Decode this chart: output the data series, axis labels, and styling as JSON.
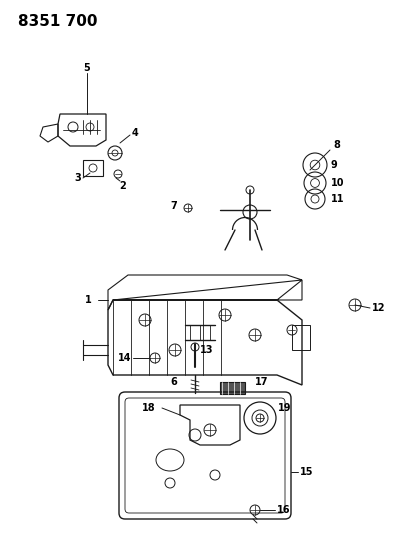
{
  "title": "8351 700",
  "bg_color": "#ffffff",
  "line_color": "#1a1a1a",
  "title_fontsize": 11,
  "label_fontsize": 7,
  "fig_w": 4.1,
  "fig_h": 5.33,
  "dpi": 100
}
